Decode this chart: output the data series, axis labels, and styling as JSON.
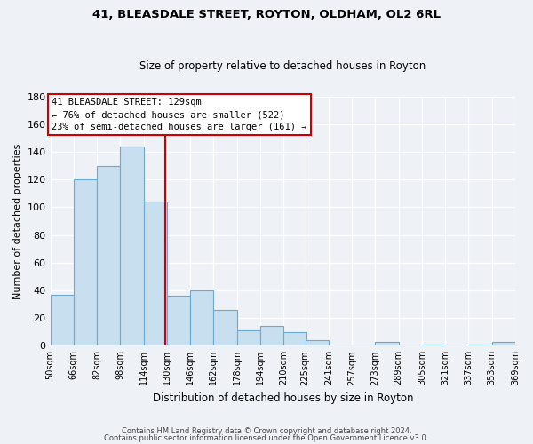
{
  "title": "41, BLEASDALE STREET, ROYTON, OLDHAM, OL2 6RL",
  "subtitle": "Size of property relative to detached houses in Royton",
  "xlabel": "Distribution of detached houses by size in Royton",
  "ylabel": "Number of detached properties",
  "bar_color": "#c8dff0",
  "bar_edge_color": "#6aaad4",
  "bin_edges": [
    50,
    66,
    82,
    98,
    114,
    130,
    146,
    162,
    178,
    194,
    210,
    225,
    241,
    257,
    273,
    289,
    305,
    321,
    337,
    353,
    369
  ],
  "bar_heights": [
    37,
    120,
    130,
    144,
    104,
    36,
    40,
    26,
    11,
    14,
    10,
    4,
    0,
    0,
    3,
    0,
    1,
    0,
    1,
    3
  ],
  "tick_labels": [
    "50sqm",
    "66sqm",
    "82sqm",
    "98sqm",
    "114sqm",
    "130sqm",
    "146sqm",
    "162sqm",
    "178sqm",
    "194sqm",
    "210sqm",
    "225sqm",
    "241sqm",
    "257sqm",
    "273sqm",
    "289sqm",
    "305sqm",
    "321sqm",
    "337sqm",
    "353sqm",
    "369sqm"
  ],
  "property_line_x": 129,
  "ylim": [
    0,
    180
  ],
  "annotation_title": "41 BLEASDALE STREET: 129sqm",
  "annotation_line1": "← 76% of detached houses are smaller (522)",
  "annotation_line2": "23% of semi-detached houses are larger (161) →",
  "annotation_box_color": "#ffffff",
  "annotation_box_edge_color": "#cc0000",
  "property_line_color": "#cc0000",
  "footer1": "Contains HM Land Registry data © Crown copyright and database right 2024.",
  "footer2": "Contains public sector information licensed under the Open Government Licence v3.0.",
  "background_color": "#eef2f7",
  "grid_color": "#ffffff",
  "yticks": [
    0,
    20,
    40,
    60,
    80,
    100,
    120,
    140,
    160,
    180
  ]
}
